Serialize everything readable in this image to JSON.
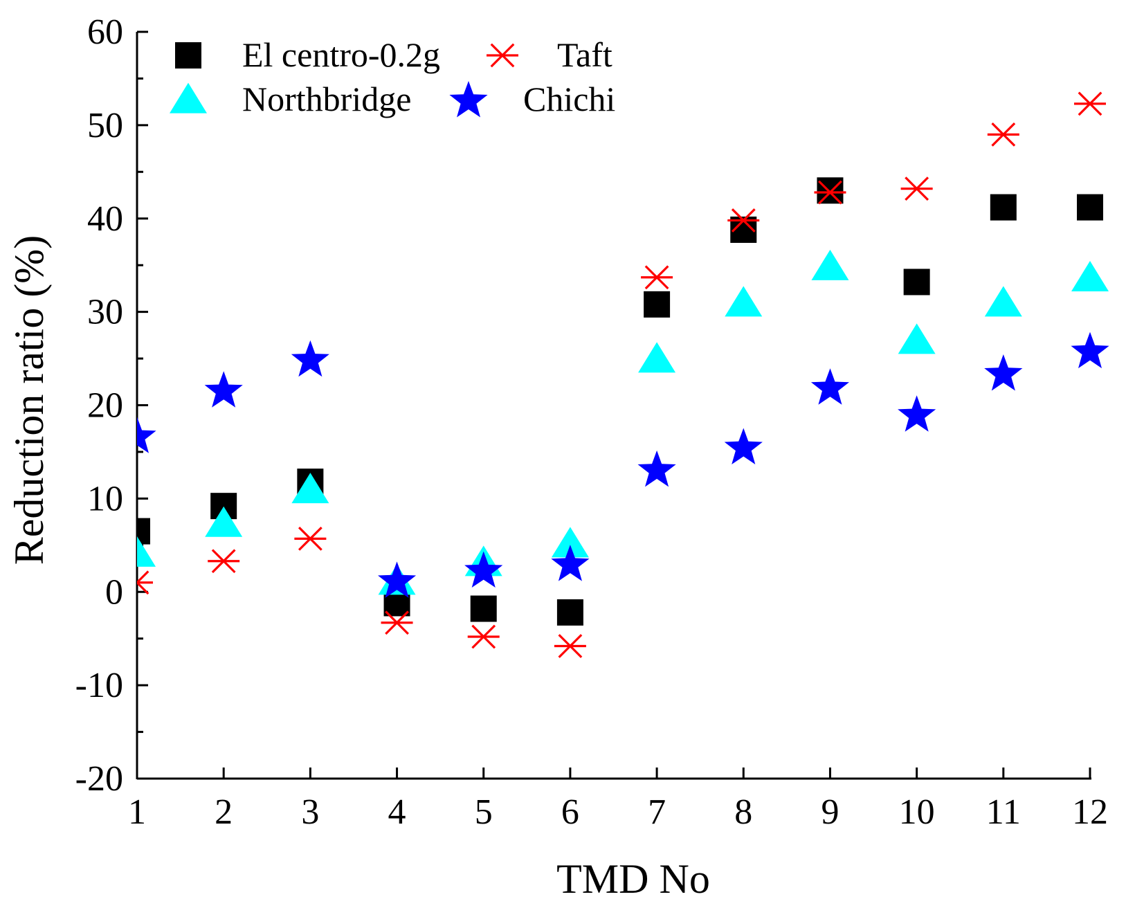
{
  "chart_data": {
    "type": "scatter",
    "title": "",
    "xlabel": "TMD No",
    "ylabel": "Reduction ratio (%)",
    "x": [
      1,
      2,
      3,
      4,
      5,
      6,
      7,
      8,
      9,
      10,
      11,
      12
    ],
    "xlim": [
      1,
      12
    ],
    "ylim": [
      -20,
      60
    ],
    "xticks": [
      "1",
      "2",
      "3",
      "4",
      "5",
      "6",
      "7",
      "8",
      "9",
      "10",
      "11",
      "12"
    ],
    "yticks": [
      "-20",
      "-10",
      "0",
      "10",
      "20",
      "30",
      "40",
      "50",
      "60"
    ],
    "grid": false,
    "legend_position": "top-left",
    "series": [
      {
        "name": "El centro-0.2g",
        "marker": "square",
        "color": "#000000",
        "values": [
          6.5,
          9.2,
          11.8,
          -1.2,
          -1.8,
          -2.2,
          30.8,
          38.8,
          43.0,
          33.2,
          41.2,
          41.2
        ]
      },
      {
        "name": "Taft",
        "marker": "asterisk",
        "color": "#ff0000",
        "values": [
          1.0,
          3.3,
          5.7,
          -3.3,
          -4.8,
          -5.8,
          33.7,
          39.8,
          42.8,
          43.2,
          49.0,
          52.3
        ]
      },
      {
        "name": "Northbridge",
        "marker": "triangle",
        "color": "#00ffff",
        "values": [
          4.0,
          7.2,
          10.8,
          1.0,
          3.0,
          5.0,
          24.8,
          30.8,
          34.7,
          26.8,
          30.8,
          33.5
        ]
      },
      {
        "name": "Chichi",
        "marker": "star",
        "color": "#0000ff",
        "values": [
          16.6,
          21.5,
          24.8,
          1.1,
          2.2,
          2.9,
          13.0,
          15.4,
          21.8,
          18.9,
          23.3,
          25.7
        ]
      }
    ]
  }
}
